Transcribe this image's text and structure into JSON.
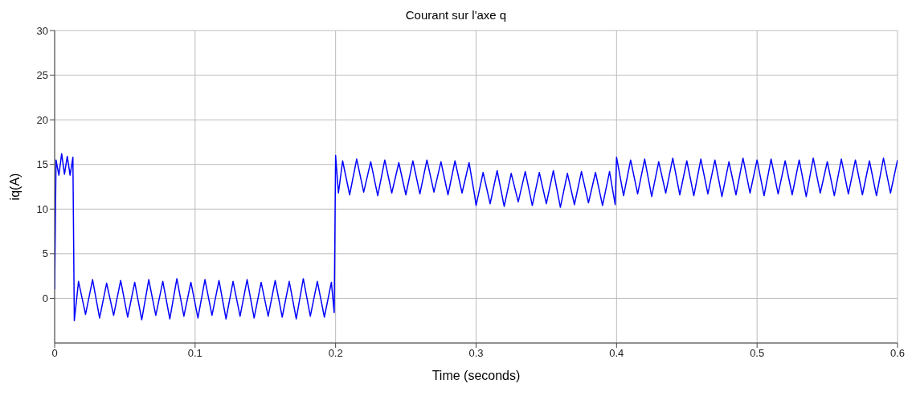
{
  "chart_data": {
    "type": "line",
    "title": "Courant sur l'axe q",
    "xlabel": "Time (seconds)",
    "ylabel": "iq(A)",
    "xlim": [
      0,
      0.6
    ],
    "xticks": [
      0,
      0.1,
      0.2,
      0.3,
      0.4,
      0.5,
      0.6
    ],
    "ylim": [
      -5,
      30
    ],
    "yticks": [
      0,
      5,
      10,
      15,
      20,
      25,
      30
    ],
    "grid": true,
    "series": [
      {
        "color": "#0000ff",
        "x": [
          0,
          0.001,
          0.003,
          0.005,
          0.007,
          0.009,
          0.011,
          0.013,
          0.014,
          0.017,
          0.022,
          0.027,
          0.032,
          0.037,
          0.042,
          0.047,
          0.052,
          0.057,
          0.062,
          0.067,
          0.072,
          0.077,
          0.082,
          0.087,
          0.092,
          0.097,
          0.102,
          0.107,
          0.112,
          0.117,
          0.122,
          0.127,
          0.132,
          0.137,
          0.142,
          0.147,
          0.152,
          0.157,
          0.162,
          0.167,
          0.172,
          0.177,
          0.182,
          0.187,
          0.192,
          0.197,
          0.199,
          0.2,
          0.202,
          0.205,
          0.21,
          0.215,
          0.22,
          0.225,
          0.23,
          0.235,
          0.24,
          0.245,
          0.25,
          0.255,
          0.26,
          0.265,
          0.27,
          0.275,
          0.28,
          0.285,
          0.29,
          0.295,
          0.299,
          0.3,
          0.305,
          0.31,
          0.315,
          0.32,
          0.325,
          0.33,
          0.335,
          0.34,
          0.345,
          0.35,
          0.355,
          0.36,
          0.365,
          0.37,
          0.375,
          0.38,
          0.385,
          0.39,
          0.395,
          0.399,
          0.4,
          0.405,
          0.41,
          0.415,
          0.42,
          0.425,
          0.43,
          0.435,
          0.44,
          0.445,
          0.45,
          0.455,
          0.46,
          0.465,
          0.47,
          0.475,
          0.48,
          0.485,
          0.49,
          0.495,
          0.5,
          0.505,
          0.51,
          0.515,
          0.52,
          0.525,
          0.53,
          0.535,
          0.54,
          0.545,
          0.55,
          0.555,
          0.56,
          0.565,
          0.57,
          0.575,
          0.58,
          0.585,
          0.59,
          0.595,
          0.6
        ],
        "values": [
          1,
          15.5,
          13.8,
          16.2,
          13.9,
          15.9,
          13.8,
          15.8,
          -2.5,
          1.9,
          -1.8,
          2.1,
          -2.2,
          1.7,
          -1.9,
          2.0,
          -2.1,
          1.8,
          -2.4,
          2.1,
          -1.9,
          1.9,
          -2.3,
          2.2,
          -2.0,
          1.8,
          -2.2,
          2.1,
          -1.9,
          2.0,
          -2.3,
          1.9,
          -2.0,
          2.1,
          -2.2,
          1.8,
          -2.0,
          2.0,
          -2.1,
          1.9,
          -2.3,
          2.2,
          -2.0,
          1.9,
          -2.1,
          1.8,
          -1.6,
          16.0,
          11.8,
          15.4,
          11.6,
          15.6,
          11.9,
          15.3,
          11.5,
          15.5,
          11.8,
          15.2,
          11.6,
          15.4,
          11.7,
          15.5,
          11.9,
          15.3,
          11.6,
          15.4,
          11.8,
          15.2,
          11.5,
          10.4,
          14.1,
          10.6,
          14.3,
          10.3,
          14.0,
          10.8,
          14.2,
          10.4,
          14.1,
          10.6,
          14.3,
          10.2,
          14.0,
          10.5,
          14.2,
          10.7,
          14.1,
          10.4,
          14.2,
          10.5,
          15.8,
          11.5,
          15.5,
          11.7,
          15.6,
          11.4,
          15.3,
          11.8,
          15.7,
          11.6,
          15.4,
          11.5,
          15.6,
          11.7,
          15.5,
          11.4,
          15.3,
          11.6,
          15.7,
          11.8,
          15.5,
          11.5,
          15.6,
          11.7,
          15.4,
          11.6,
          15.5,
          11.4,
          15.7,
          11.8,
          15.3,
          11.5,
          15.6,
          11.7,
          15.5,
          11.6,
          15.4,
          11.5,
          15.7,
          11.8,
          15.5
        ]
      }
    ]
  }
}
